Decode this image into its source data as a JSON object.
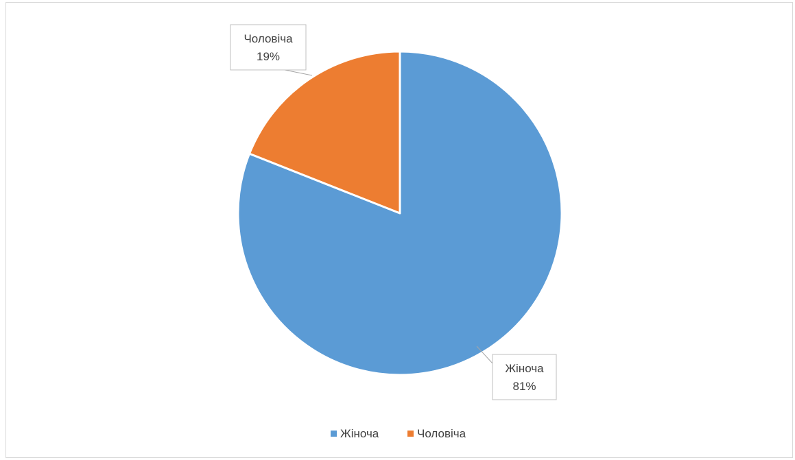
{
  "chart_data": {
    "type": "pie",
    "title": "",
    "categories": [
      "Жіноча",
      "Чоловіча"
    ],
    "values": [
      81,
      19
    ],
    "labels": [
      "81%",
      "19%"
    ],
    "colors": [
      "#5b9bd5",
      "#ed7d31"
    ],
    "legend_position": "bottom",
    "start_angle": "top",
    "direction": "clockwise"
  }
}
